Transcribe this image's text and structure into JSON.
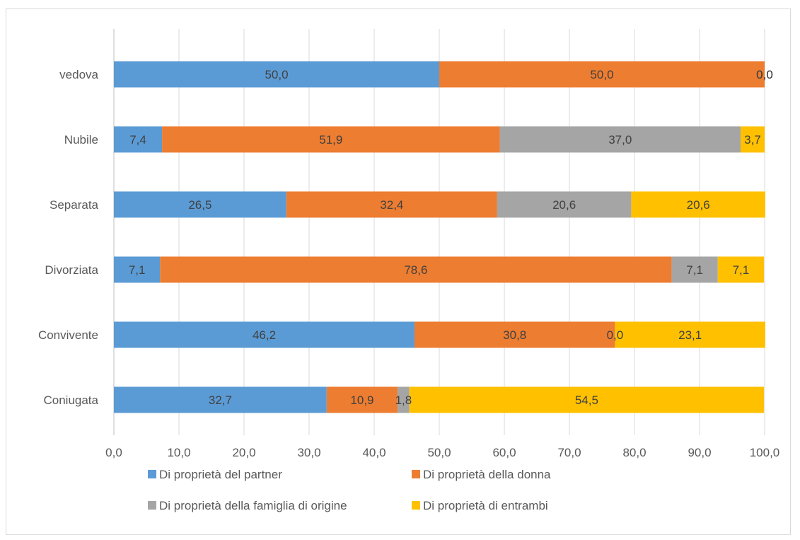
{
  "chart_data": {
    "type": "bar",
    "orientation": "horizontal",
    "stacked": true,
    "categories": [
      "vedova",
      "Nubile",
      "Separata",
      "Divorziata",
      "Convivente",
      "Coniugata"
    ],
    "series": [
      {
        "name": "Di proprietà del partner",
        "color": "#5B9BD5",
        "values": [
          50.0,
          7.4,
          26.5,
          7.1,
          46.2,
          32.7
        ],
        "labels": [
          "50,0",
          "7,4",
          "26,5",
          "7,1",
          "46,2",
          "32,7"
        ]
      },
      {
        "name": "Di proprietà della donna",
        "color": "#ED7D31",
        "values": [
          50.0,
          51.9,
          32.4,
          78.6,
          30.8,
          10.9
        ],
        "labels": [
          "50,0",
          "51,9",
          "32,4",
          "78,6",
          "30,8",
          "10,9"
        ]
      },
      {
        "name": "Di proprietà della famiglia di origine",
        "color": "#A5A5A5",
        "values": [
          0.0,
          37.0,
          20.6,
          7.1,
          0.0,
          1.8
        ],
        "labels": [
          "0,0",
          "37,0",
          "20,6",
          "7,1",
          "0,0",
          "1,8"
        ]
      },
      {
        "name": "Di proprietà di entrambi",
        "color": "#FFC000",
        "values": [
          0.0,
          3.7,
          20.6,
          7.1,
          23.1,
          54.5
        ],
        "labels": [
          "0,0",
          "3,7",
          "20,6",
          "7,1",
          "23,1",
          "54,5"
        ]
      }
    ],
    "xlim": [
      0,
      100
    ],
    "xticks": [
      0,
      10,
      20,
      30,
      40,
      50,
      60,
      70,
      80,
      90,
      100
    ],
    "xtick_labels": [
      "0,0",
      "10,0",
      "20,0",
      "30,0",
      "40,0",
      "50,0",
      "60,0",
      "70,0",
      "80,0",
      "90,0",
      "100,0"
    ],
    "grid": true,
    "legend_position": "bottom",
    "title": "",
    "xlabel": "",
    "ylabel": ""
  }
}
